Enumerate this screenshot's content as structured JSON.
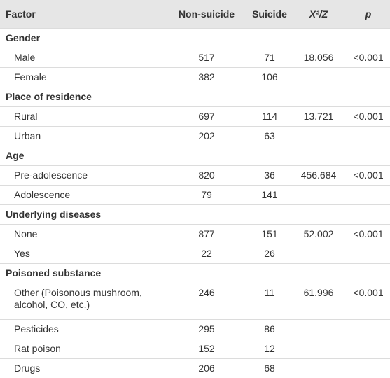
{
  "table": {
    "header": [
      "Factor",
      "Non-suicide",
      "Suicide",
      "X²/Z",
      "p"
    ],
    "groups": [
      {
        "title": "Gender",
        "rows": [
          [
            "Male",
            517,
            71,
            18.056,
            "<0.001"
          ],
          [
            "Female",
            382,
            106
          ]
        ]
      },
      {
        "title": "Place of residence",
        "rows": [
          [
            "Rural",
            697,
            114,
            13.721,
            "<0.001"
          ],
          [
            "Urban",
            202,
            63
          ]
        ]
      },
      {
        "title": "Age",
        "rows": [
          [
            "Pre-adolescence",
            820,
            36,
            456.684,
            "<0.001"
          ],
          [
            "Adolescence",
            79,
            141
          ]
        ]
      },
      {
        "title": "Underlying diseases",
        "rows": [
          [
            "None",
            877,
            151,
            52.002,
            "<0.001"
          ],
          [
            "Yes",
            22,
            26
          ]
        ]
      },
      {
        "title": "Poisoned substance",
        "rows": [
          [
            "Other (Poisonous mushroom, alcohol, CO, etc.)",
            246,
            11,
            61.996,
            "<0.001"
          ],
          [
            "Pesticides",
            295,
            86
          ],
          [
            "Rat poison",
            152,
            12
          ],
          [
            "Drugs",
            206,
            68
          ]
        ]
      }
    ]
  }
}
